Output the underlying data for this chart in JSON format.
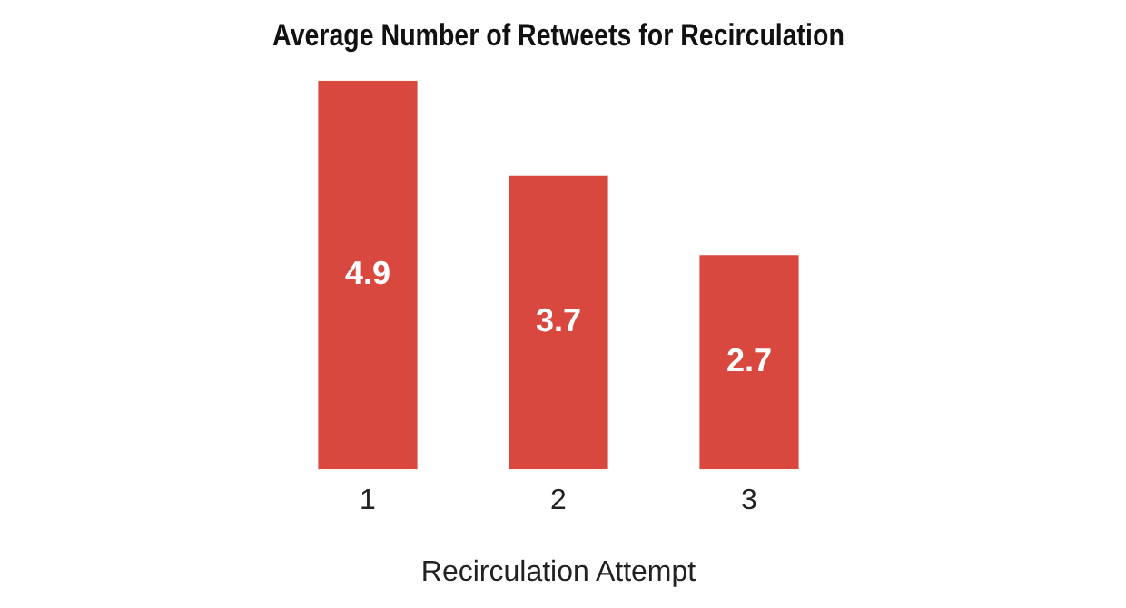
{
  "chart_data": {
    "type": "bar",
    "title": "Average Number of Retweets for Recirculation",
    "xlabel": "Recirculation Attempt",
    "categories": [
      "1",
      "2",
      "3"
    ],
    "values": [
      4.9,
      3.7,
      2.7
    ],
    "color": "#d9483f",
    "data_labels": true,
    "grid": false,
    "legend": false
  }
}
